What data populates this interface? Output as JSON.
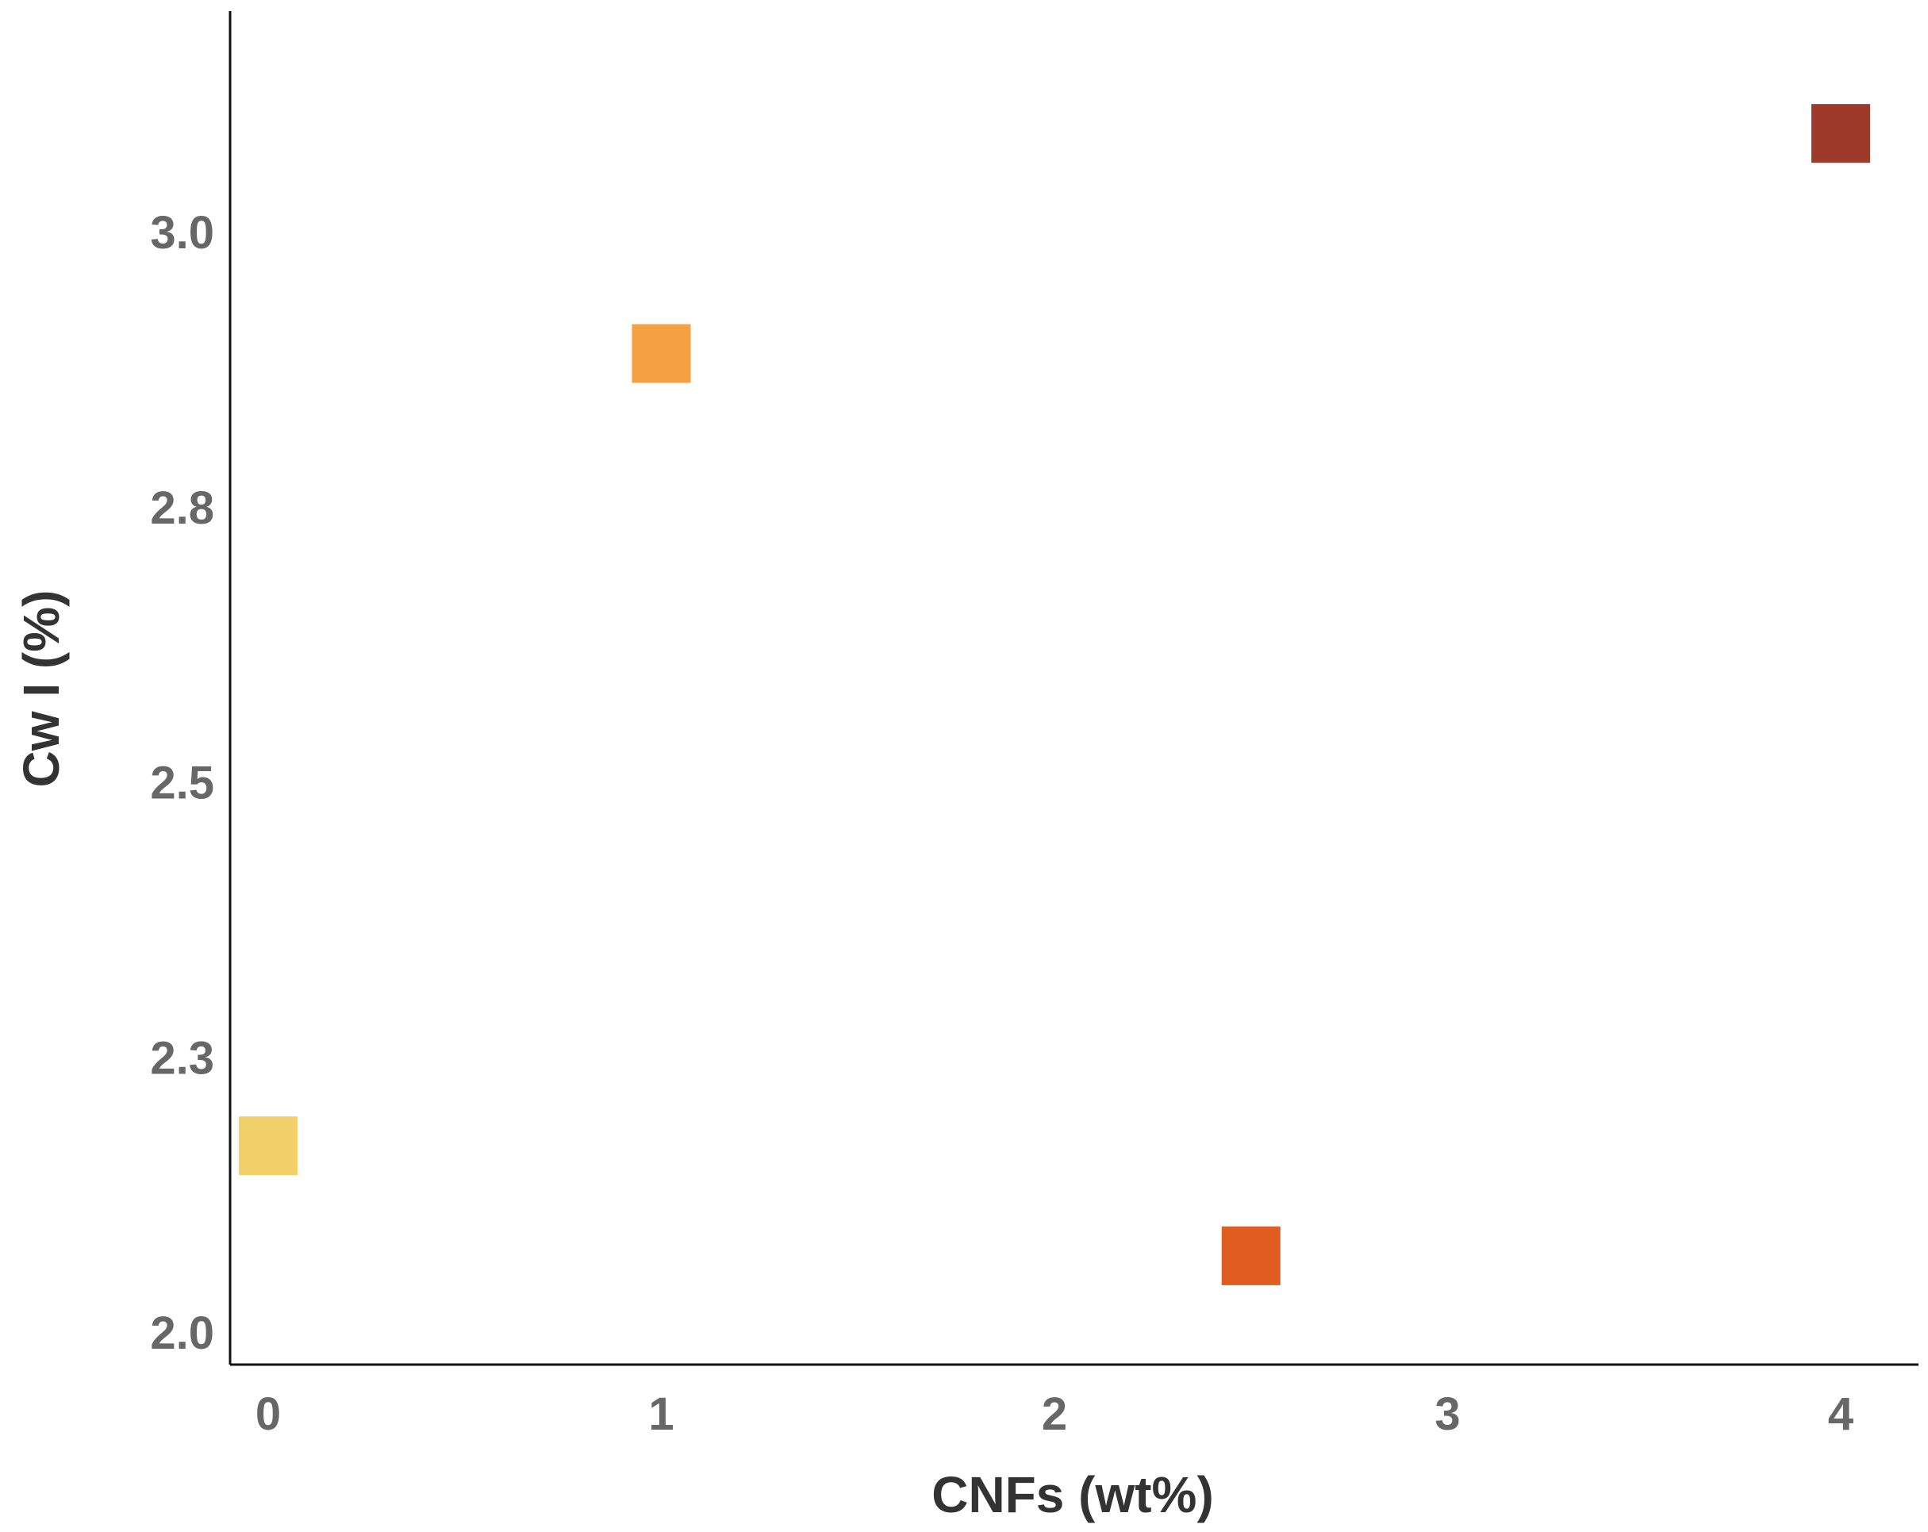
{
  "chart_data": {
    "type": "scatter",
    "title": "",
    "xlabel": "CNFs (wt%)",
    "ylabel": "Cw I (%)",
    "xlim": [
      -0.1,
      4.2
    ],
    "ylim": [
      1.97,
      3.2
    ],
    "x_ticks": [
      0,
      1,
      2,
      3,
      4
    ],
    "x_tick_labels": [
      "0",
      "1",
      "2",
      "3",
      "4"
    ],
    "y_ticks": [
      2.0,
      2.25,
      2.5,
      2.75,
      3.0
    ],
    "y_tick_labels": [
      "2.0",
      "2.3",
      "2.5",
      "2.8",
      "3.0"
    ],
    "grid": false,
    "legend": "none",
    "marker": "square",
    "points": [
      {
        "x": 0,
        "y": 2.17,
        "color": "#F2D16A"
      },
      {
        "x": 1,
        "y": 2.89,
        "color": "#F6A044"
      },
      {
        "x": 2.5,
        "y": 2.07,
        "color": "#DF5E1F"
      },
      {
        "x": 4,
        "y": 3.09,
        "color": "#9E3A29"
      }
    ]
  }
}
